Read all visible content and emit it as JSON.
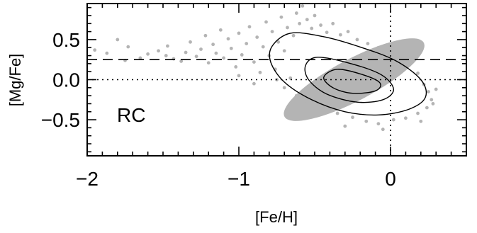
{
  "chart_data": {
    "type": "scatter",
    "xlabel": "[Fe/H]",
    "ylabel": "[Mg/Fe]",
    "panel_label": "RC",
    "xlim": [
      -2.0,
      0.5
    ],
    "ylim": [
      -0.95,
      0.95
    ],
    "x_ticks": [
      {
        "value": -2,
        "label": "−2"
      },
      {
        "value": -1,
        "label": "−1"
      },
      {
        "value": 0,
        "label": "0"
      }
    ],
    "y_ticks": [
      {
        "value": 0.5,
        "label": "0.5"
      },
      {
        "value": 0.0,
        "label": "0.0"
      },
      {
        "value": -0.5,
        "label": "−0.5"
      }
    ],
    "x_minor_step": 0.1,
    "y_minor_step": 0.1,
    "reference_lines": [
      {
        "orientation": "horizontal",
        "value": 0.25,
        "style": "dashed",
        "x_from": -2.0,
        "x_to": 0.5
      },
      {
        "orientation": "horizontal",
        "value": 0.0,
        "style": "dotted",
        "x_from": -2.0,
        "x_to": 0.5
      },
      {
        "orientation": "vertical",
        "value": 0.0,
        "style": "dotted",
        "y_from": -0.95,
        "y_to": 0.95
      }
    ],
    "points_color": "#b4b4b4",
    "contour_color": "#000000",
    "density_blob": {
      "center": [
        -0.24,
        0.0
      ],
      "radius_x": 0.52,
      "radius_y": 0.26,
      "angle_deg": -28
    },
    "outlier_points": [
      [
        -1.95,
        0.37
      ],
      [
        -1.87,
        0.33
      ],
      [
        -1.8,
        0.5
      ],
      [
        -1.75,
        0.24
      ],
      [
        -1.73,
        0.41
      ],
      [
        -1.65,
        0.27
      ],
      [
        -1.6,
        0.32
      ],
      [
        -1.53,
        0.36
      ],
      [
        -1.48,
        0.3
      ],
      [
        -1.47,
        0.42
      ],
      [
        -1.43,
        0.26
      ],
      [
        -1.38,
        0.23
      ],
      [
        -1.35,
        0.34
      ],
      [
        -1.32,
        0.47
      ],
      [
        -1.28,
        0.29
      ],
      [
        -1.25,
        0.38
      ],
      [
        -1.22,
        0.55
      ],
      [
        -1.2,
        0.21
      ],
      [
        -1.17,
        0.44
      ],
      [
        -1.15,
        0.33
      ],
      [
        -1.12,
        0.62
      ],
      [
        -1.1,
        0.27
      ],
      [
        -1.07,
        0.51
      ],
      [
        -1.05,
        0.39
      ],
      [
        -1.02,
        0.16
      ],
      [
        -1.0,
        0.58
      ],
      [
        -0.98,
        0.31
      ],
      [
        -0.95,
        0.45
      ],
      [
        -0.93,
        0.66
      ],
      [
        -0.9,
        0.22
      ],
      [
        -0.88,
        0.53
      ],
      [
        -0.86,
        0.09
      ],
      [
        -0.84,
        0.41
      ],
      [
        -0.82,
        0.72
      ],
      [
        -0.8,
        0.3
      ],
      [
        -0.78,
        0.6
      ],
      [
        -0.76,
        0.13
      ],
      [
        -0.74,
        0.47
      ],
      [
        -0.72,
        0.78
      ],
      [
        -0.7,
        0.36
      ],
      [
        -0.68,
        0.65
      ],
      [
        -0.66,
        0.02
      ],
      [
        -0.64,
        0.55
      ],
      [
        -0.62,
        0.83
      ],
      [
        -0.6,
        0.7
      ],
      [
        -0.58,
        0.92
      ],
      [
        -0.55,
        0.75
      ],
      [
        -0.52,
        0.64
      ],
      [
        -0.5,
        0.8
      ],
      [
        -0.46,
        0.68
      ],
      [
        -0.42,
        0.59
      ],
      [
        -0.38,
        0.7
      ],
      [
        -0.33,
        0.56
      ],
      [
        -0.28,
        0.6
      ],
      [
        -0.22,
        0.5
      ],
      [
        -0.15,
        0.45
      ],
      [
        -0.08,
        0.4
      ],
      [
        -0.02,
        0.33
      ],
      [
        0.05,
        0.26
      ],
      [
        0.12,
        0.18
      ],
      [
        0.18,
        0.08
      ],
      [
        0.22,
        -0.06
      ],
      [
        0.25,
        -0.15
      ],
      [
        0.27,
        -0.25
      ],
      [
        0.24,
        -0.35
      ],
      [
        0.18,
        -0.42
      ],
      [
        0.1,
        -0.48
      ],
      [
        0.02,
        -0.5
      ],
      [
        -0.08,
        -0.55
      ],
      [
        -0.16,
        -0.52
      ],
      [
        -0.25,
        -0.47
      ],
      [
        -0.35,
        -0.42
      ],
      [
        -0.45,
        -0.33
      ],
      [
        -0.55,
        -0.27
      ],
      [
        -0.62,
        -0.2
      ],
      [
        -0.7,
        -0.1
      ],
      [
        -0.75,
        0.0
      ],
      [
        0.3,
        -0.12
      ],
      [
        0.28,
        -0.3
      ],
      [
        0.2,
        -0.52
      ],
      [
        -0.05,
        -0.62
      ],
      [
        -0.3,
        -0.58
      ],
      [
        0.15,
        0.3
      ],
      [
        -0.9,
        -0.05
      ],
      [
        -1.0,
        0.05
      ]
    ],
    "contours": [
      {
        "level": "outer",
        "points": [
          [
            -0.66,
            0.58
          ],
          [
            -0.45,
            0.54
          ],
          [
            -0.22,
            0.42
          ],
          [
            0.03,
            0.24
          ],
          [
            0.2,
            0.0
          ],
          [
            0.23,
            -0.22
          ],
          [
            0.12,
            -0.37
          ],
          [
            -0.08,
            -0.44
          ],
          [
            -0.3,
            -0.4
          ],
          [
            -0.52,
            -0.25
          ],
          [
            -0.7,
            -0.03
          ],
          [
            -0.79,
            0.22
          ],
          [
            -0.78,
            0.42
          ]
        ]
      },
      {
        "level": "middle",
        "points": [
          [
            -0.48,
            0.28
          ],
          [
            -0.26,
            0.2
          ],
          [
            -0.06,
            0.06
          ],
          [
            0.02,
            -0.12
          ],
          [
            -0.05,
            -0.25
          ],
          [
            -0.22,
            -0.28
          ],
          [
            -0.42,
            -0.18
          ],
          [
            -0.54,
            0.0
          ],
          [
            -0.56,
            0.18
          ]
        ]
      },
      {
        "level": "inner",
        "points": [
          [
            -0.35,
            0.13
          ],
          [
            -0.18,
            0.06
          ],
          [
            -0.07,
            -0.04
          ],
          [
            -0.1,
            -0.14
          ],
          [
            -0.25,
            -0.17
          ],
          [
            -0.38,
            -0.1
          ],
          [
            -0.44,
            0.03
          ]
        ]
      }
    ]
  }
}
